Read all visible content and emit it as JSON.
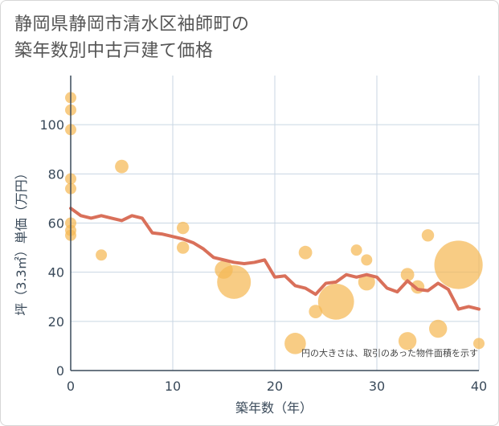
{
  "chart_data": {
    "type": "scatter",
    "title_line1": "静岡県静岡市清水区袖師町の",
    "title_line2": "築年数別中古戸建て価格",
    "xlabel": "築年数（年）",
    "ylabel": "坪（3.3㎡）単価（万円）",
    "xlim": [
      0,
      40
    ],
    "ylim": [
      0,
      120
    ],
    "xticks": [
      0,
      10,
      20,
      30,
      40
    ],
    "yticks": [
      0,
      20,
      40,
      60,
      80,
      100
    ],
    "grid": true,
    "note": "円の大きさは、取引のあった物件面積を示す",
    "bubble_color": "#f5b955",
    "line_color": "#d9705a",
    "bubbles": [
      {
        "x": 0,
        "y": 111,
        "r": 1
      },
      {
        "x": 0,
        "y": 106,
        "r": 1
      },
      {
        "x": 0,
        "y": 98,
        "r": 1
      },
      {
        "x": 0,
        "y": 78,
        "r": 1
      },
      {
        "x": 0,
        "y": 74,
        "r": 1
      },
      {
        "x": 0,
        "y": 60,
        "r": 1
      },
      {
        "x": 0,
        "y": 57,
        "r": 1
      },
      {
        "x": 0,
        "y": 55,
        "r": 1
      },
      {
        "x": 3,
        "y": 47,
        "r": 1
      },
      {
        "x": 5,
        "y": 83,
        "r": 1.2
      },
      {
        "x": 11,
        "y": 58,
        "r": 1.1
      },
      {
        "x": 11,
        "y": 50,
        "r": 1.1
      },
      {
        "x": 15,
        "y": 41,
        "r": 1.6
      },
      {
        "x": 16,
        "y": 36,
        "r": 3
      },
      {
        "x": 22,
        "y": 11,
        "r": 1.9
      },
      {
        "x": 23,
        "y": 48,
        "r": 1.2
      },
      {
        "x": 24,
        "y": 24,
        "r": 1.2
      },
      {
        "x": 26,
        "y": 28,
        "r": 3.2
      },
      {
        "x": 28,
        "y": 49,
        "r": 1
      },
      {
        "x": 29,
        "y": 45,
        "r": 1
      },
      {
        "x": 29,
        "y": 36,
        "r": 1.5
      },
      {
        "x": 33,
        "y": 39,
        "r": 1.2
      },
      {
        "x": 33,
        "y": 12,
        "r": 1.6
      },
      {
        "x": 34,
        "y": 34,
        "r": 1.2
      },
      {
        "x": 35,
        "y": 55,
        "r": 1.1
      },
      {
        "x": 36,
        "y": 17,
        "r": 1.6
      },
      {
        "x": 38,
        "y": 43,
        "r": 4.3
      },
      {
        "x": 40,
        "y": 11,
        "r": 1
      }
    ],
    "line_x": [
      0,
      1,
      2,
      3,
      4,
      5,
      6,
      7,
      8,
      9,
      10,
      11,
      12,
      13,
      14,
      15,
      16,
      17,
      18,
      19,
      20,
      21,
      22,
      23,
      24,
      25,
      26,
      27,
      28,
      29,
      30,
      31,
      32,
      33,
      34,
      35,
      36,
      37,
      38,
      39,
      40
    ],
    "line_y": [
      66,
      63,
      62,
      63,
      62,
      61,
      63,
      62,
      56,
      55.5,
      54.5,
      53.5,
      52,
      49.5,
      46,
      45,
      44,
      43.5,
      44,
      45,
      38,
      38.5,
      34.5,
      33.5,
      31,
      35.5,
      36,
      39,
      38,
      39,
      38,
      33.5,
      32,
      36.5,
      33,
      32.5,
      35.5,
      33,
      25,
      26,
      25
    ]
  }
}
